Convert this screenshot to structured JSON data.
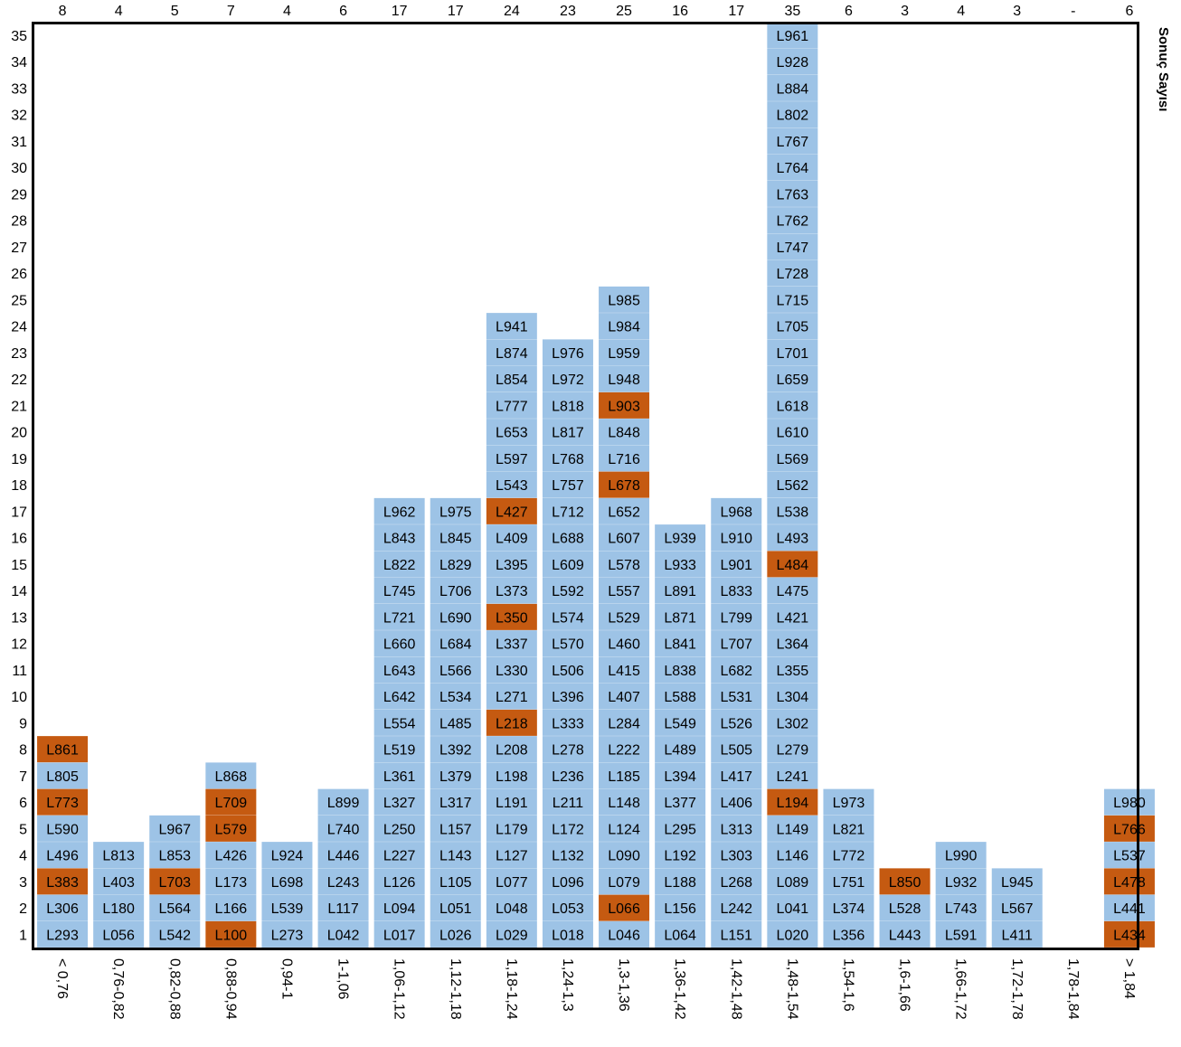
{
  "chart_data": {
    "type": "table",
    "ylabel": "Sonuç Sayısı",
    "y_ticks": [
      "1",
      "2",
      "3",
      "4",
      "5",
      "6",
      "7",
      "8",
      "9",
      "10",
      "11",
      "12",
      "13",
      "14",
      "15",
      "16",
      "17",
      "18",
      "19",
      "20",
      "21",
      "22",
      "23",
      "24",
      "25",
      "26",
      "27",
      "28",
      "29",
      "30",
      "31",
      "32",
      "33",
      "34",
      "35"
    ],
    "ylim": [
      0,
      35
    ],
    "categories": [
      "< 0,76",
      "0,76-0,82",
      "0,82-0,88",
      "0,88-0,94",
      "0,94-1",
      "1-1,06",
      "1,06-1,12",
      "1,12-1,18",
      "1,18-1,24",
      "1,24-1,3",
      "1,3-1,36",
      "1,36-1,42",
      "1,42-1,48",
      "1,48-1,54",
      "1,54-1,6",
      "1,6-1,66",
      "1,66-1,72",
      "1,72-1,78",
      "1,78-1,84",
      "> 1,84"
    ],
    "counts": [
      "8",
      "4",
      "5",
      "7",
      "4",
      "6",
      "17",
      "17",
      "24",
      "23",
      "25",
      "16",
      "17",
      "35",
      "6",
      "3",
      "4",
      "3",
      "-",
      "6"
    ],
    "columns": [
      [
        "L293",
        "L306",
        "L383",
        "L496",
        "L590",
        "L773",
        "L805",
        "L861"
      ],
      [
        "L056",
        "L180",
        "L403",
        "L813"
      ],
      [
        "L542",
        "L564",
        "L703",
        "L853",
        "L967"
      ],
      [
        "L100",
        "L166",
        "L173",
        "L426",
        "L579",
        "L709",
        "L868"
      ],
      [
        "L273",
        "L539",
        "L698",
        "L924"
      ],
      [
        "L042",
        "L117",
        "L243",
        "L446",
        "L740",
        "L899"
      ],
      [
        "L017",
        "L094",
        "L126",
        "L227",
        "L250",
        "L327",
        "L361",
        "L519",
        "L554",
        "L642",
        "L643",
        "L660",
        "L721",
        "L745",
        "L822",
        "L843",
        "L962"
      ],
      [
        "L026",
        "L051",
        "L105",
        "L143",
        "L157",
        "L317",
        "L379",
        "L392",
        "L485",
        "L534",
        "L566",
        "L684",
        "L690",
        "L706",
        "L829",
        "L845",
        "L975"
      ],
      [
        "L029",
        "L048",
        "L077",
        "L127",
        "L179",
        "L191",
        "L198",
        "L208",
        "L218",
        "L271",
        "L330",
        "L337",
        "L350",
        "L373",
        "L395",
        "L409",
        "L427",
        "L543",
        "L597",
        "L653",
        "L777",
        "L854",
        "L874",
        "L941"
      ],
      [
        "L018",
        "L053",
        "L096",
        "L132",
        "L172",
        "L211",
        "L236",
        "L278",
        "L333",
        "L396",
        "L506",
        "L570",
        "L574",
        "L592",
        "L609",
        "L688",
        "L712",
        "L757",
        "L768",
        "L817",
        "L818",
        "L972",
        "L976"
      ],
      [
        "L046",
        "L066",
        "L079",
        "L090",
        "L124",
        "L148",
        "L185",
        "L222",
        "L284",
        "L407",
        "L415",
        "L460",
        "L529",
        "L557",
        "L578",
        "L607",
        "L652",
        "L678",
        "L716",
        "L848",
        "L903",
        "L948",
        "L959",
        "L984",
        "L985"
      ],
      [
        "L064",
        "L156",
        "L188",
        "L192",
        "L295",
        "L377",
        "L394",
        "L489",
        "L549",
        "L588",
        "L838",
        "L841",
        "L871",
        "L891",
        "L933",
        "L939"
      ],
      [
        "L151",
        "L242",
        "L268",
        "L303",
        "L313",
        "L406",
        "L417",
        "L505",
        "L526",
        "L531",
        "L682",
        "L707",
        "L799",
        "L833",
        "L901",
        "L910",
        "L968"
      ],
      [
        "L020",
        "L041",
        "L089",
        "L146",
        "L149",
        "L194",
        "L241",
        "L279",
        "L302",
        "L304",
        "L355",
        "L364",
        "L421",
        "L475",
        "L484",
        "L493",
        "L538",
        "L562",
        "L569",
        "L610",
        "L618",
        "L659",
        "L701",
        "L705",
        "L715",
        "L728",
        "L747",
        "L762",
        "L763",
        "L764",
        "L767",
        "L802",
        "L884",
        "L928",
        "L961"
      ],
      [
        "L356",
        "L374",
        "L751",
        "L772",
        "L821",
        "L973"
      ],
      [
        "L443",
        "L528",
        "L850"
      ],
      [
        "L591",
        "L743",
        "L932",
        "L990"
      ],
      [
        "L411",
        "L567",
        "L945"
      ],
      [],
      [
        "L434",
        "L441",
        "L478",
        "L537",
        "L766",
        "L980"
      ]
    ],
    "highlighted": [
      "L861",
      "L773",
      "L383",
      "L703",
      "L709",
      "L579",
      "L100",
      "L427",
      "L350",
      "L218",
      "L903",
      "L678",
      "L066",
      "L484",
      "L194",
      "L850",
      "L766",
      "L478",
      "L434"
    ],
    "colors": {
      "cell": "#9dc3e6",
      "highlight": "#c55a11",
      "border": "#000000"
    }
  }
}
